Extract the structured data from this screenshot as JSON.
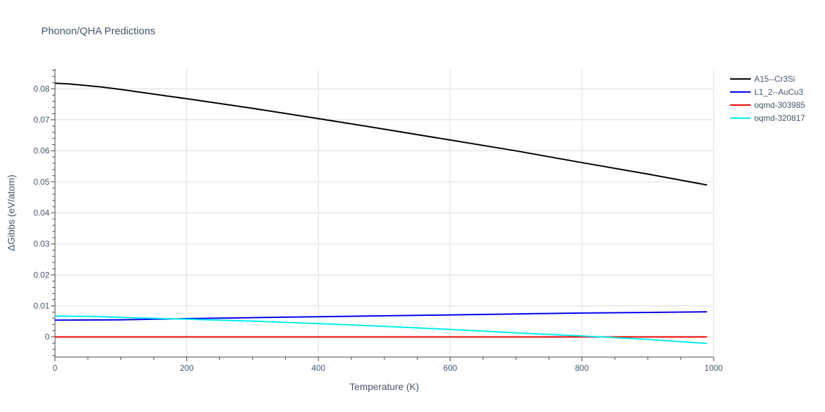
{
  "chart_data": {
    "type": "line",
    "title": "Phonon/QHA Predictions",
    "xlabel": "Temperature (K)",
    "ylabel": "ΔGibbs (eV/atom)",
    "xlim": [
      0,
      1000
    ],
    "ylim": [
      -0.0065,
      0.0865
    ],
    "x_ticks": [
      0,
      200,
      400,
      600,
      800,
      1000
    ],
    "x_tick_labels": [
      "0",
      "200",
      "400",
      "600",
      "800",
      "1000"
    ],
    "y_ticks": [
      0,
      0.01,
      0.02,
      0.03,
      0.04,
      0.05,
      0.06,
      0.07,
      0.08
    ],
    "y_tick_labels": [
      "0",
      "0.01",
      "0.02",
      "0.03",
      "0.04",
      "0.05",
      "0.06",
      "0.07",
      "0.08"
    ],
    "grid": true,
    "legend_position": "top-right",
    "series": [
      {
        "name": "A15--Cr3Si",
        "color": "#000000",
        "x": [
          0,
          20,
          70,
          100,
          200,
          300,
          400,
          500,
          600,
          700,
          800,
          900,
          990
        ],
        "y": [
          0.0818,
          0.0816,
          0.0806,
          0.0798,
          0.0768,
          0.0737,
          0.0704,
          0.067,
          0.0635,
          0.06,
          0.0562,
          0.0525,
          0.049
        ]
      },
      {
        "name": "L1_2--AuCu3",
        "color": "#0000ee",
        "x": [
          0,
          100,
          200,
          300,
          400,
          500,
          600,
          700,
          800,
          900,
          990
        ],
        "y": [
          0.0054,
          0.0055,
          0.0059,
          0.0062,
          0.0065,
          0.0068,
          0.0071,
          0.0074,
          0.0077,
          0.0079,
          0.0081
        ]
      },
      {
        "name": "oqmd-303985",
        "color": "#ee0000",
        "x": [
          0,
          990
        ],
        "y": [
          0,
          0
        ]
      },
      {
        "name": "oqmd-320817",
        "color": "#00eeee",
        "x": [
          0,
          60,
          100,
          200,
          300,
          400,
          500,
          600,
          700,
          800,
          830,
          900,
          990
        ],
        "y": [
          0.0067,
          0.0066,
          0.0063,
          0.0057,
          0.0051,
          0.0043,
          0.0034,
          0.0024,
          0.0013,
          0.0003,
          0.0,
          -0.0008,
          -0.0021
        ]
      }
    ]
  }
}
